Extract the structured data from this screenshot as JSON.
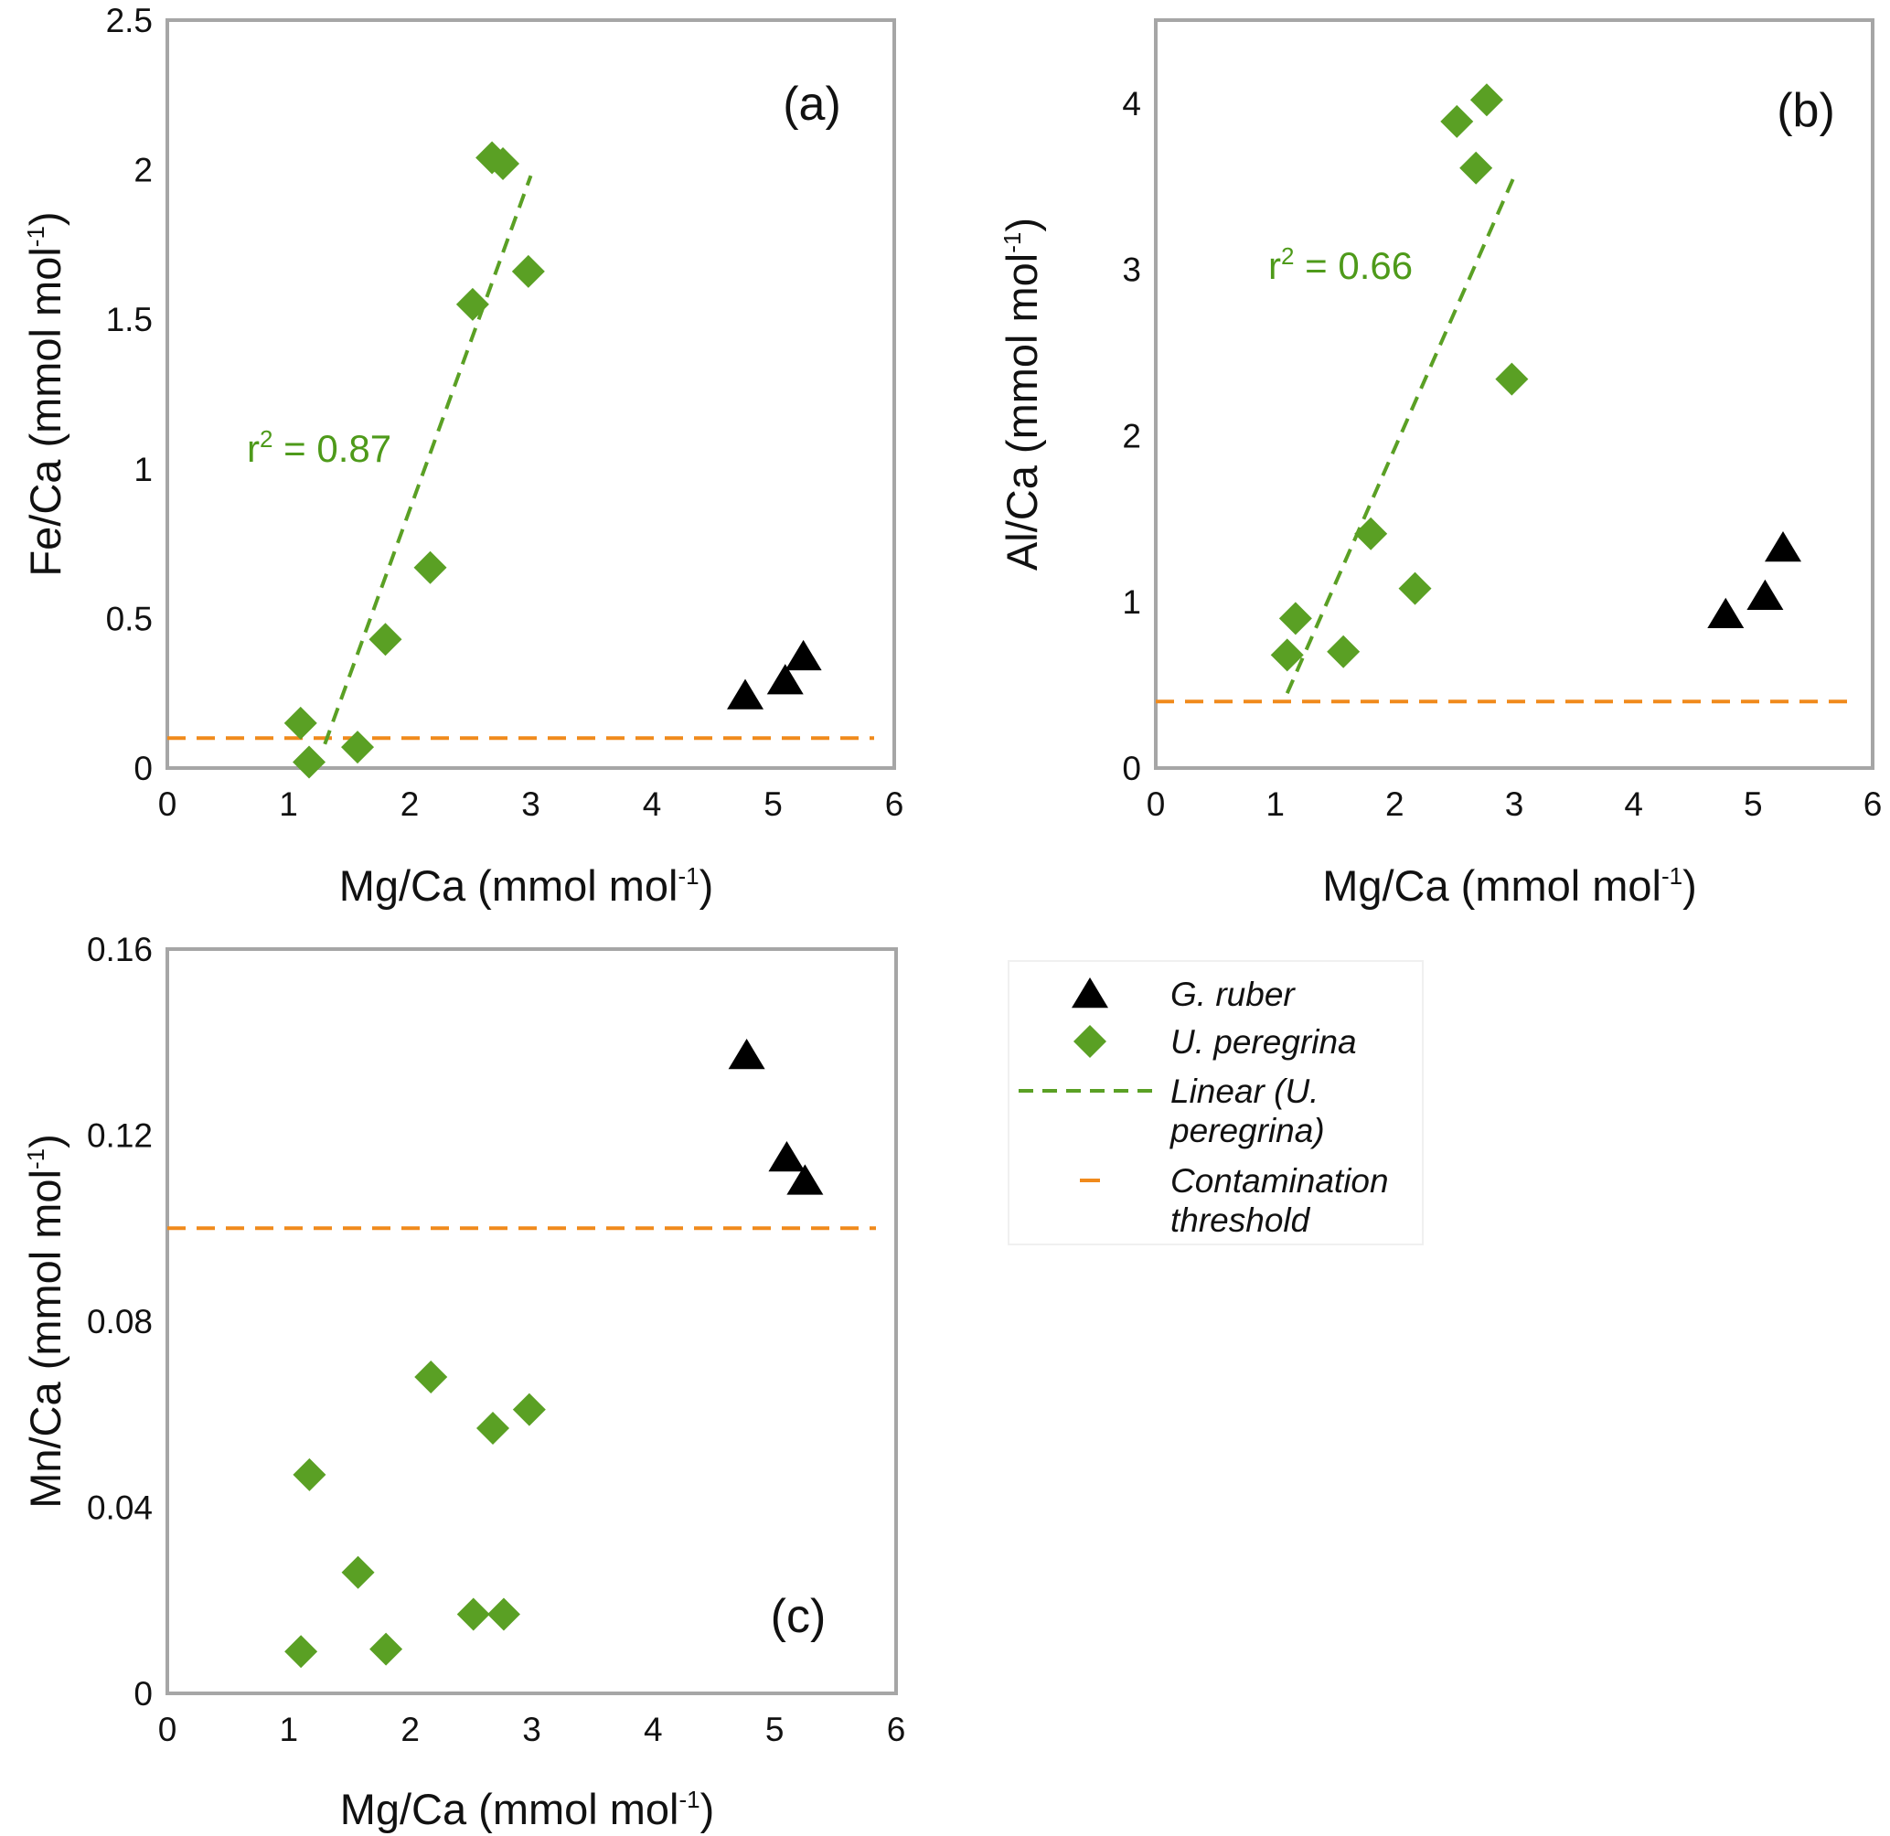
{
  "colors": {
    "g_ruber": "#000000",
    "u_peregrina": "#5aa024",
    "linear": "#5aa024",
    "threshold": "#f08a1c",
    "frame": "#a6a6a6"
  },
  "legend": {
    "items": [
      {
        "marker": "triangle",
        "label": "G. ruber"
      },
      {
        "marker": "diamond",
        "label": "U. peregrina"
      },
      {
        "marker": "dashed-green-line",
        "label_lines": [
          "Linear (U.",
          "peregrina)"
        ]
      },
      {
        "marker": "dashed-orange-line",
        "label_lines": [
          "Contamination",
          "threshold"
        ]
      }
    ]
  },
  "chart_data": [
    {
      "panel": "(a)",
      "type": "scatter",
      "xlabel": "Mg/Ca (mmol mol",
      "ylabel": "Fe/Ca (mmol mol",
      "unit_superscript": "-1",
      "unit_close": ")",
      "xlim": [
        0,
        6
      ],
      "ylim": [
        0,
        2.5
      ],
      "xticks": [
        "0",
        "1",
        "2",
        "3",
        "4",
        "5",
        "6"
      ],
      "yticks": [
        "0",
        "0.5",
        "1",
        "1.5",
        "2",
        "2.5"
      ],
      "series": [
        {
          "name": "G. ruber",
          "marker": "triangle",
          "x": [
            4.77,
            5.1,
            5.25
          ],
          "y": [
            0.24,
            0.29,
            0.37
          ]
        },
        {
          "name": "U. peregrina",
          "marker": "diamond",
          "x": [
            1.1,
            1.17,
            1.57,
            1.8,
            2.17,
            2.52,
            2.68,
            2.77,
            2.98
          ],
          "y": [
            0.15,
            0.02,
            0.07,
            0.43,
            0.67,
            1.55,
            2.04,
            2.02,
            1.66
          ]
        }
      ],
      "trendline": {
        "x": [
          1.3,
          3.0
        ],
        "y": [
          0.08,
          1.98
        ]
      },
      "r2_prefix": "r",
      "r2_exp": "2",
      "r2_value": " = 0.87",
      "threshold": 0.1
    },
    {
      "panel": "(b)",
      "type": "scatter",
      "xlabel": "Mg/Ca (mmol mol",
      "ylabel": "Al/Ca (mmol mol",
      "unit_superscript": "-1",
      "unit_close": ")",
      "xlim": [
        0,
        6
      ],
      "ylim": [
        0,
        4.5
      ],
      "xticks": [
        "0",
        "1",
        "2",
        "3",
        "4",
        "5",
        "6"
      ],
      "yticks": [
        "0",
        "1",
        "2",
        "3",
        "4"
      ],
      "series": [
        {
          "name": "G. ruber",
          "marker": "triangle",
          "x": [
            4.77,
            5.1,
            5.25
          ],
          "y": [
            0.92,
            1.03,
            1.32
          ]
        },
        {
          "name": "U. peregrina",
          "marker": "diamond",
          "x": [
            1.1,
            1.17,
            1.57,
            1.8,
            2.17,
            2.52,
            2.68,
            2.77,
            2.98
          ],
          "y": [
            0.68,
            0.9,
            0.7,
            1.41,
            1.08,
            3.89,
            3.61,
            4.02,
            2.34
          ]
        }
      ],
      "trendline": {
        "x": [
          1.1,
          3.0
        ],
        "y": [
          0.45,
          3.56
        ]
      },
      "r2_prefix": "r",
      "r2_exp": "2",
      "r2_value": " = 0.66",
      "threshold": 0.4
    },
    {
      "panel": "(c)",
      "type": "scatter",
      "xlabel": "Mg/Ca (mmol mol",
      "ylabel": "Mn/Ca (mmol mol",
      "unit_superscript": "-1",
      "unit_close": ")",
      "xlim": [
        0,
        6
      ],
      "ylim": [
        0,
        0.16
      ],
      "xticks": [
        "0",
        "1",
        "2",
        "3",
        "4",
        "5",
        "6"
      ],
      "yticks": [
        "0",
        "0.04",
        "0.08",
        "0.12",
        "0.16"
      ],
      "series": [
        {
          "name": "G. ruber",
          "marker": "triangle",
          "x": [
            4.77,
            5.1,
            5.25
          ],
          "y": [
            0.137,
            0.115,
            0.11
          ]
        },
        {
          "name": "U. peregrina",
          "marker": "diamond",
          "x": [
            1.1,
            1.17,
            1.57,
            1.8,
            2.17,
            2.52,
            2.68,
            2.77,
            2.98
          ],
          "y": [
            0.009,
            0.047,
            0.026,
            0.0095,
            0.068,
            0.017,
            0.057,
            0.017,
            0.061
          ]
        }
      ],
      "threshold": 0.1
    }
  ]
}
